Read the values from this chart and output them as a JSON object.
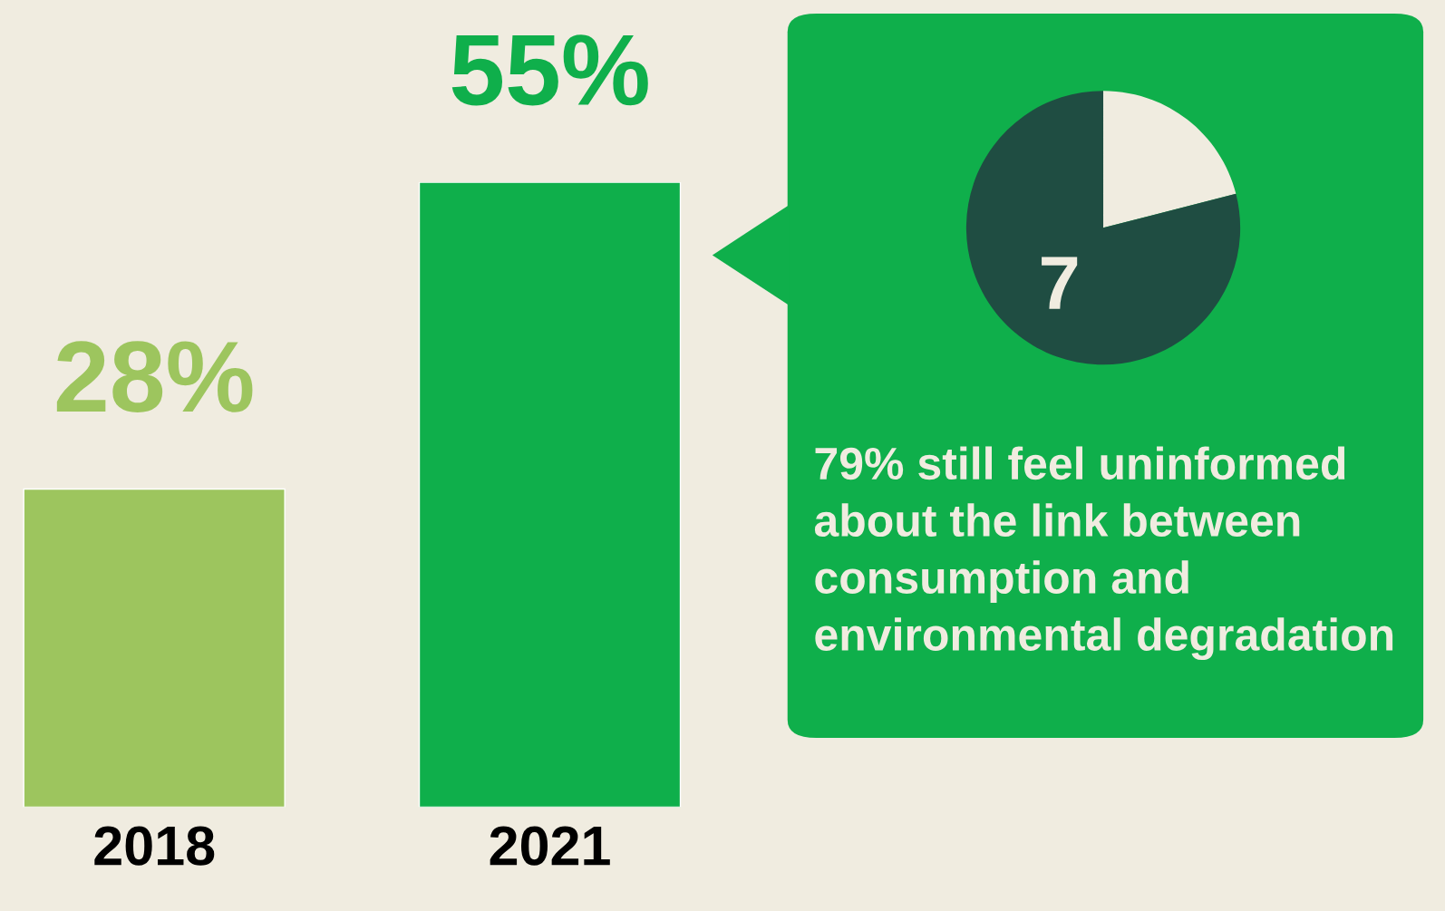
{
  "chart_data": [
    {
      "type": "bar",
      "categories": [
        "2018",
        "2021"
      ],
      "values": [
        28,
        55
      ],
      "colors": [
        "#9dc55e",
        "#0faf4b"
      ],
      "value_labels": [
        "28%",
        "55%"
      ]
    },
    {
      "type": "pie",
      "categories": [
        null,
        null
      ],
      "values": [
        21,
        79
      ],
      "colors": [
        "#f0ece0",
        "#1f4d42"
      ],
      "annotations": [
        "7",
        "79% still feel uninformed about the link between consumption and environmental degradation"
      ]
    }
  ]
}
